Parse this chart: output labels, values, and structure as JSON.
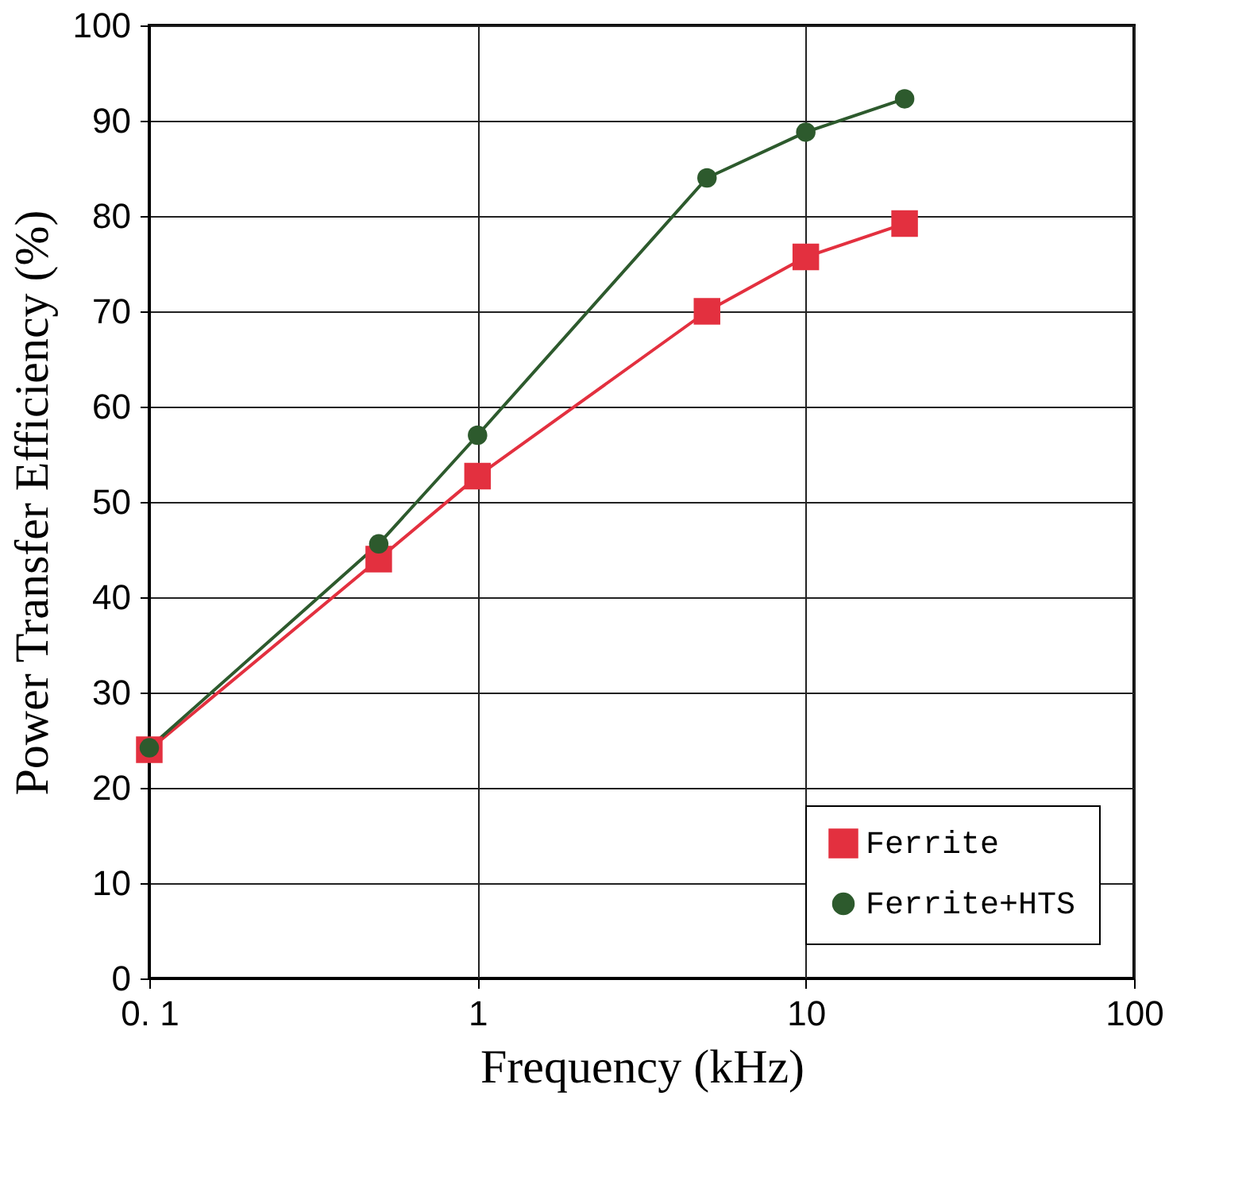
{
  "chart_data": {
    "type": "line",
    "xlabel": "Frequency (kHz)",
    "ylabel": "Power Transfer Efficiency (%)",
    "log": "x",
    "xlim": [
      0.1,
      100
    ],
    "xticks": [
      {
        "value": 0.1,
        "label": "0. 1"
      },
      1,
      10,
      100
    ],
    "ylim": [
      0,
      100
    ],
    "yticks": [
      0,
      10,
      20,
      30,
      40,
      50,
      60,
      70,
      80,
      90,
      100
    ],
    "grid": true,
    "legend": "bottom right",
    "series": [
      {
        "name": "Ferrite",
        "color": "#e3303f",
        "marker": "square",
        "x": [
          0.1,
          0.5,
          1,
          5,
          10,
          20
        ],
        "values": [
          24,
          44,
          52.7,
          70,
          75.7,
          79.2
        ]
      },
      {
        "name": "Ferrite+HTS",
        "color": "#2d5a2d",
        "marker": "circle",
        "x": [
          0.1,
          0.5,
          1,
          5,
          10,
          20
        ],
        "values": [
          24.2,
          45.6,
          57,
          84,
          88.8,
          92.3
        ]
      }
    ]
  }
}
